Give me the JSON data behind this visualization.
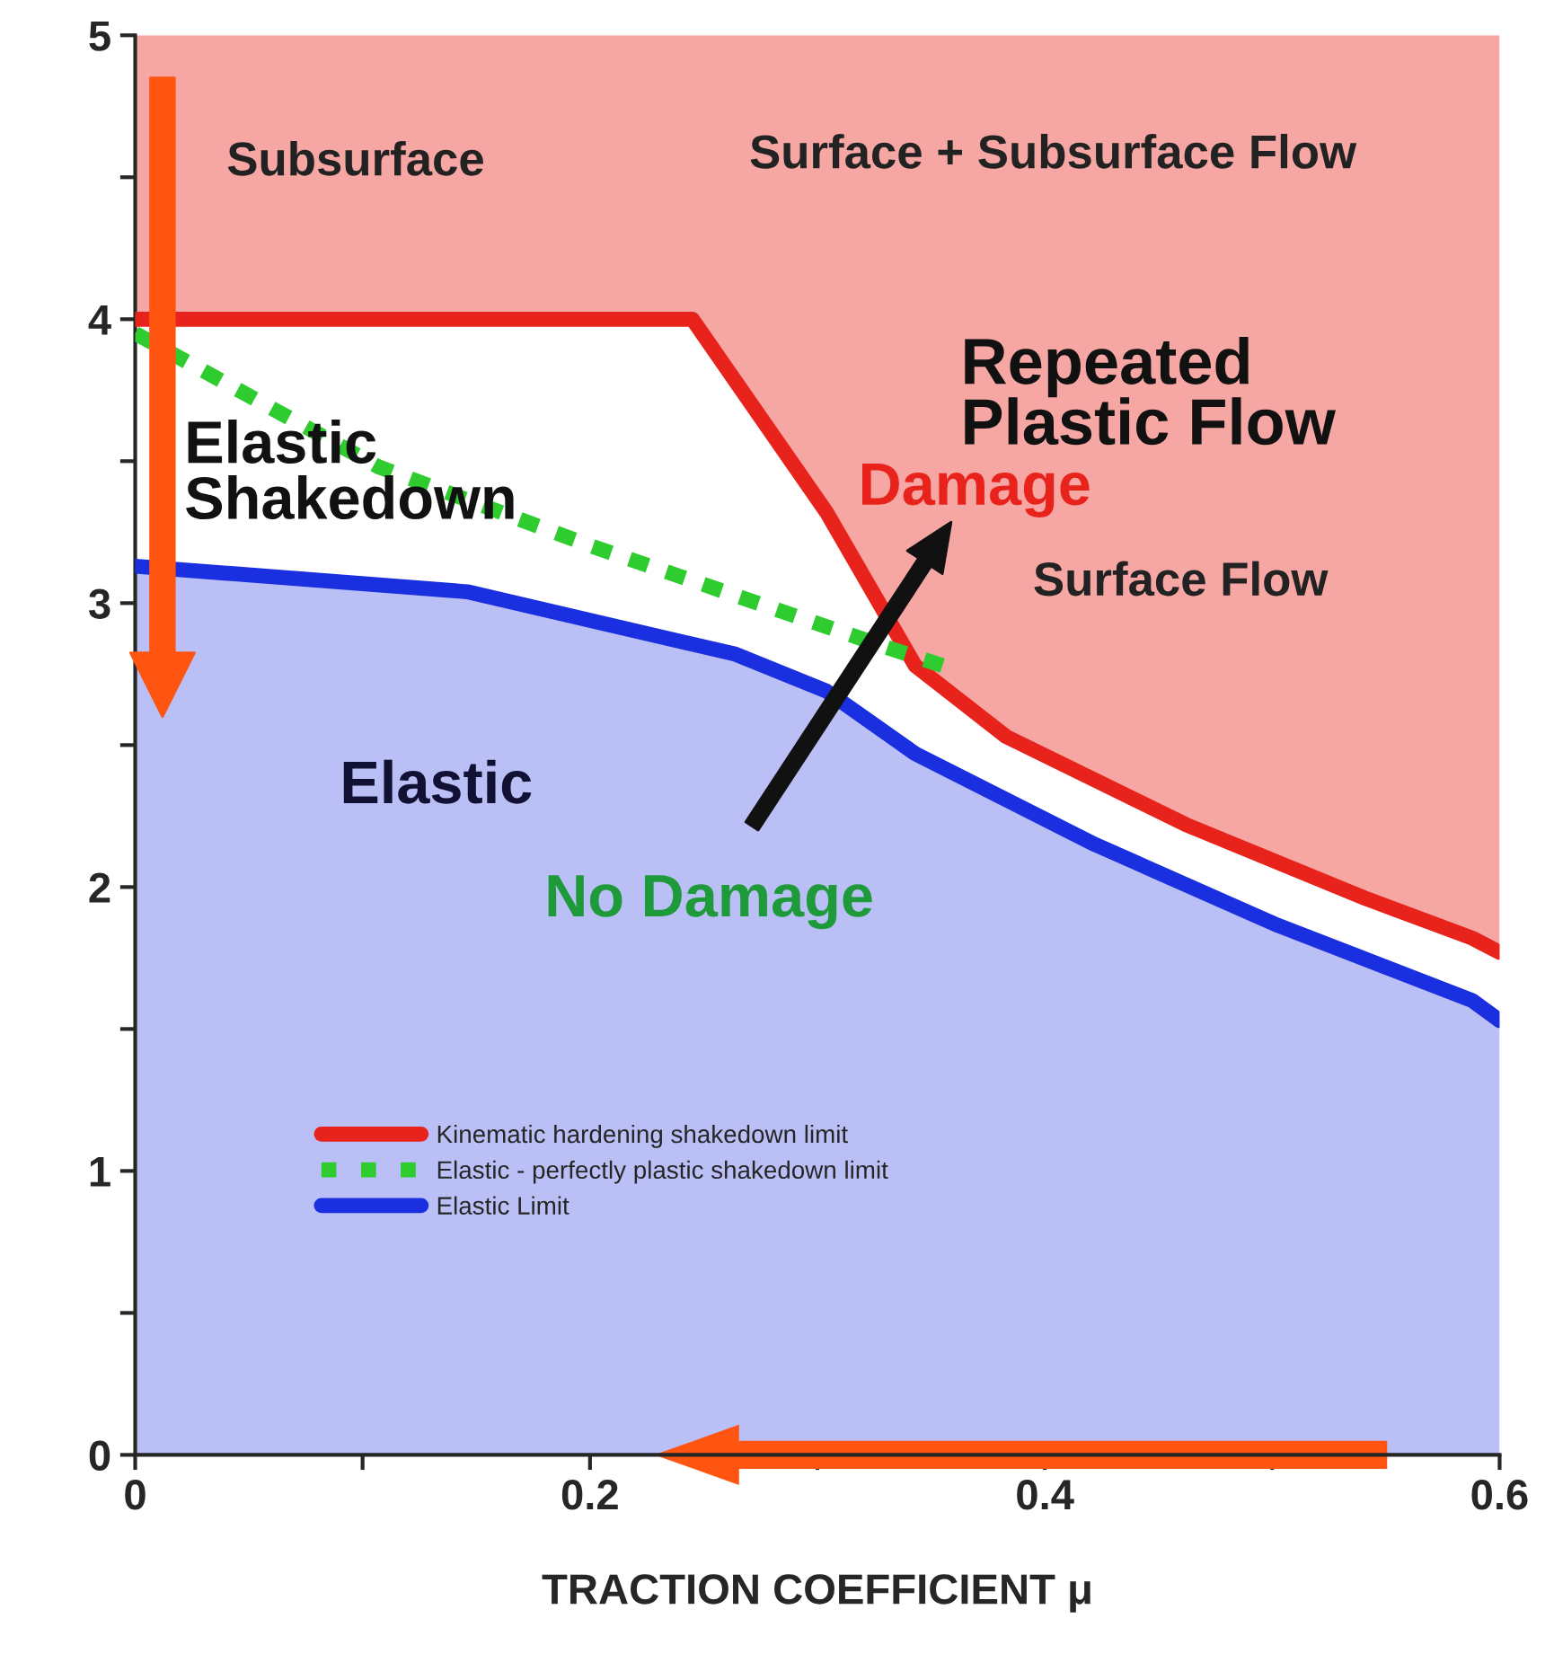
{
  "chart_data": {
    "type": "line",
    "xlabel": "TRACTION COEFFICIENT μ",
    "xlim": [
      0,
      0.6
    ],
    "ylim": [
      0,
      5
    ],
    "xticks": [
      0,
      {
        "value": 0.1,
        "label": null
      },
      0.2,
      {
        "value": 0.3,
        "label": null
      },
      0.4,
      {
        "value": 0.5,
        "label": null
      },
      0.6
    ],
    "yticks": [
      0,
      {
        "value": 0.5,
        "label": null
      },
      1,
      {
        "value": 1.5,
        "label": null
      },
      2,
      {
        "value": 2.5,
        "label": null
      },
      3,
      {
        "value": 3.5,
        "label": null
      },
      4,
      {
        "value": 4.5,
        "label": null
      },
      5
    ],
    "grid": false,
    "legend": "bottom left",
    "series": [
      {
        "name": "Kinematic hardening shakedown limit",
        "color": "#e8231c",
        "line_style": "solid",
        "x": [
          0,
          0.245,
          0.304,
          0.343,
          0.383,
          0.462,
          0.541,
          0.588,
          0.6
        ],
        "values": [
          4,
          4,
          3.32,
          2.78,
          2.53,
          2.22,
          1.96,
          1.82,
          1.77
        ],
        "lower": [
          4,
          4,
          3.32,
          2.78,
          2.53,
          2.22,
          1.96,
          1.82,
          1.77
        ],
        "upper": [
          5,
          5,
          5,
          5,
          5,
          5,
          5,
          5,
          5
        ]
      },
      {
        "name": "Elastic - perfectly plastic shakedown limit",
        "color": "#2ecc2e",
        "line_style": "dotted",
        "x": [
          0,
          0.107,
          0.201,
          0.332,
          0.355
        ],
        "values": [
          3.95,
          3.48,
          3.2,
          2.84,
          2.78
        ]
      },
      {
        "name": "Elastic Limit",
        "type": "area",
        "color": "#1a2fe0",
        "line_style": "solid",
        "x": [
          0,
          0.146,
          0.264,
          0.304,
          0.343,
          0.422,
          0.501,
          0.588,
          0.6
        ],
        "values": [
          3.13,
          3.04,
          2.82,
          2.69,
          2.47,
          2.15,
          1.87,
          1.6,
          1.53
        ]
      }
    ],
    "annotations": [
      "Subsurface",
      "Surface + Subsurface Flow",
      "Repeated\nPlastic Flow",
      "Damage",
      "Surface Flow",
      "Elastic\nShakedown",
      "Elastic",
      "No Damage"
    ]
  }
}
